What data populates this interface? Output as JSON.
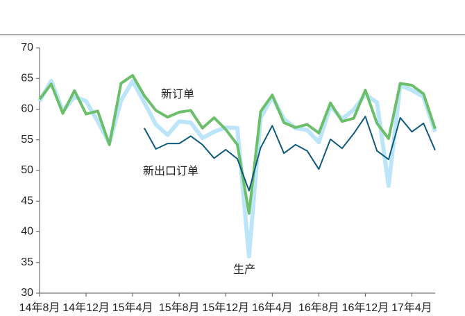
{
  "chart_data": {
    "type": "line",
    "categories": [
      "14年8月",
      null,
      null,
      null,
      "14年12月",
      null,
      null,
      null,
      "15年4月",
      null,
      null,
      null,
      "15年8月",
      null,
      null,
      null,
      "15年12月",
      null,
      null,
      null,
      "16年4月",
      null,
      null,
      null,
      "16年8月",
      null,
      null,
      null,
      "16年12月",
      null,
      null,
      null,
      "17年4月",
      null,
      null
    ],
    "series": [
      {
        "name": "生产",
        "color": "#bde5fa",
        "values": [
          61.3,
          64.6,
          59.7,
          62.0,
          61.3,
          58.0,
          54.5,
          61.4,
          64.6,
          61.1,
          57.5,
          55.8,
          58.0,
          57.8,
          55.3,
          56.3,
          57.0,
          56.9,
          36.0,
          58.6,
          62.0,
          58.4,
          56.9,
          56.6,
          54.6,
          60.5,
          58.4,
          59.9,
          62.4,
          61.1,
          47.5,
          63.9,
          63.1,
          62.0,
          56.3
        ]
      },
      {
        "name": "新订单",
        "color": "#6cbf6a",
        "values": [
          61.6,
          64.1,
          59.3,
          63.0,
          59.2,
          59.7,
          54.2,
          64.2,
          65.5,
          62.2,
          59.8,
          58.7,
          59.5,
          59.8,
          56.9,
          58.6,
          56.7,
          54.2,
          43.0,
          59.6,
          62.3,
          57.8,
          57.0,
          57.5,
          56.1,
          61.0,
          58.0,
          58.5,
          63.1,
          57.7,
          55.2,
          64.2,
          63.9,
          62.5,
          56.8
        ]
      },
      {
        "name": "新出口订单",
        "color": "#0d5a7c",
        "values": [
          null,
          null,
          null,
          null,
          null,
          null,
          null,
          null,
          null,
          56.9,
          53.5,
          54.4,
          54.4,
          55.6,
          54.2,
          52.0,
          53.4,
          51.9,
          46.7,
          53.7,
          57.3,
          52.8,
          54.2,
          53.2,
          50.2,
          55.1,
          53.6,
          56.0,
          58.8,
          53.2,
          51.8,
          58.6,
          56.3,
          57.7,
          53.3
        ]
      }
    ],
    "ylim": [
      30,
      70
    ],
    "yticks": [
      30,
      35,
      40,
      45,
      50,
      55,
      60,
      65,
      70
    ]
  }
}
